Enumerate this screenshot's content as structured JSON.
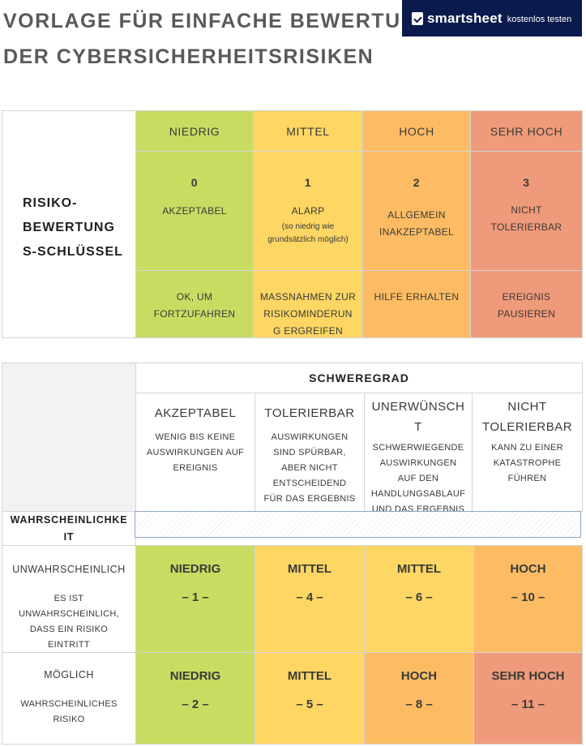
{
  "header": {
    "title_line1": "VORLAGE FÜR EINFACHE BEWERTUN",
    "title_line2": "DER CYBERSICHERHEITSRISIKEN",
    "brand_name": "smartsheet",
    "brand_cta": "kostenlos testen"
  },
  "colors": {
    "low": "#c9dc62",
    "medium": "#fdd663",
    "high": "#fdbc63",
    "very_high": "#ef9a7a",
    "brand_bg": "#0b1a4d"
  },
  "risk_key": {
    "label_lines": [
      "RISIKO-",
      "BEWERTUNG",
      "S-SCHLÜSSEL"
    ],
    "columns": [
      {
        "level": "NIEDRIG",
        "score": "0",
        "rating": "AKZEPTABEL",
        "note": "",
        "action": [
          "OK, UM",
          "FORTZUFAHREN"
        ]
      },
      {
        "level": "MITTEL",
        "score": "1",
        "rating": "ALARP",
        "note": "(so niedrig wie grundsätzlich möglich)",
        "action": [
          "MAßNAHMEN ZUR",
          "RISIKOMINDERUN",
          "G ERGREIFEN"
        ]
      },
      {
        "level": "HOCH",
        "score": "2",
        "rating_lines": [
          "ALLGEMEIN",
          "INAKZEPTABEL"
        ],
        "action": [
          "HILFE ERHALTEN"
        ]
      },
      {
        "level": "SEHR HOCH",
        "score": "3",
        "rating_lines": [
          "NICHT",
          "TOLERIERBAR"
        ],
        "action": [
          "EREIGNIS",
          "PAUSIEREN"
        ]
      }
    ]
  },
  "matrix": {
    "severity_header": "SCHWEREGRAD",
    "likelihood_header_lines": [
      "WAHRSCHEINLICHKE",
      "IT"
    ],
    "severity_columns": [
      {
        "title_lines": [
          "AKZEPTABEL"
        ],
        "desc_lines": [
          "WENIG BIS KEINE",
          "AUSWIRKUNGEN AUF",
          "EREIGNIS"
        ]
      },
      {
        "title_lines": [
          "TOLERIERBAR"
        ],
        "desc_lines": [
          "AUSWIRKUNGEN",
          "SIND SPÜRBAR,",
          "ABER NICHT",
          "ENTSCHEIDEND",
          "FÜR DAS ERGEBNIS"
        ]
      },
      {
        "title_lines": [
          "UNERWÜNSCH",
          "T"
        ],
        "desc_lines": [
          "SCHWERWIEGENDE",
          "AUSWIRKUNGEN",
          "AUF DEN",
          "HANDLUNGSABLAUF",
          "UND DAS ERGEBNIS"
        ]
      },
      {
        "title_lines": [
          "NICHT",
          "TOLERIERBAR"
        ],
        "desc_lines": [
          "KANN ZU EINER",
          "KATASTROPHE",
          "FÜHREN"
        ]
      }
    ],
    "rows": [
      {
        "title": "UNWAHRSCHEINLICH",
        "desc_lines": [
          "ES IST",
          "UNWAHRSCHEINLICH,",
          "DASS EIN RISIKO",
          "EINTRITT"
        ],
        "cells": [
          {
            "level": "NIEDRIG",
            "value": "– 1 –"
          },
          {
            "level": "MITTEL",
            "value": "– 4 –"
          },
          {
            "level": "MITTEL",
            "value": "– 6 –"
          },
          {
            "level": "HOCH",
            "value": "– 10 –"
          }
        ]
      },
      {
        "title": "MÖGLICH",
        "desc_lines": [
          "WAHRSCHEINLICHES",
          "RISIKO"
        ],
        "cells": [
          {
            "level": "NIEDRIG",
            "value": "– 2 –"
          },
          {
            "level": "MITTEL",
            "value": "– 5 –"
          },
          {
            "level": "HOCH",
            "value": "– 8 –"
          },
          {
            "level": "SEHR HOCH",
            "value": "– 11 –"
          }
        ]
      }
    ]
  }
}
